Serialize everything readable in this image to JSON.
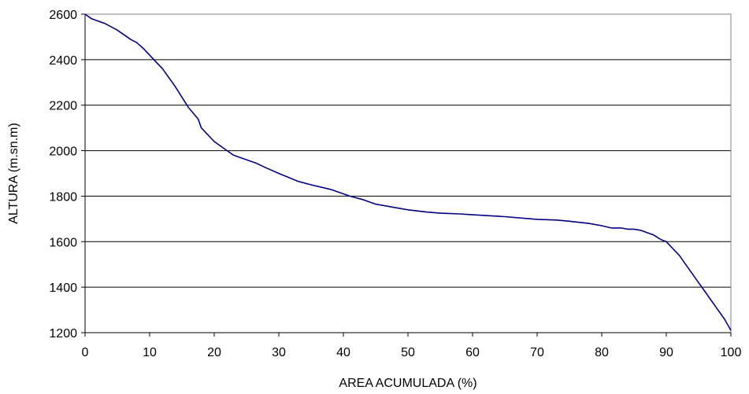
{
  "chart_data": {
    "type": "line",
    "title": "",
    "xlabel": "AREA ACUMULADA (%)",
    "ylabel": "ALTURA  (m.sn.m)",
    "xlim": [
      0,
      100
    ],
    "ylim": [
      1200,
      2600
    ],
    "x_ticks": [
      0,
      10,
      20,
      30,
      40,
      50,
      60,
      70,
      80,
      90,
      100
    ],
    "y_ticks": [
      1200,
      1400,
      1600,
      1800,
      2000,
      2200,
      2400,
      2600
    ],
    "grid": "horizontal",
    "legend": "none",
    "line_color": "#000080",
    "series": [
      {
        "x": [
          0,
          1,
          2,
          3,
          5,
          7,
          8,
          9,
          10,
          11,
          12,
          14,
          16,
          17.5,
          18,
          20,
          22,
          23,
          25,
          26.5,
          28,
          30,
          33,
          35,
          38,
          41,
          43,
          45,
          48,
          50,
          53,
          55,
          58,
          60,
          65,
          70,
          73,
          75,
          78,
          80,
          81.5,
          83,
          84,
          85,
          86,
          87,
          88,
          89,
          89.5,
          90,
          91,
          92,
          93,
          94,
          95,
          96,
          97,
          98,
          99,
          100
        ],
        "y": [
          2600,
          2580,
          2570,
          2560,
          2530,
          2490,
          2475,
          2450,
          2420,
          2390,
          2360,
          2280,
          2190,
          2140,
          2100,
          2040,
          2000,
          1980,
          1960,
          1945,
          1925,
          1900,
          1865,
          1850,
          1830,
          1800,
          1785,
          1765,
          1750,
          1740,
          1730,
          1725,
          1722,
          1718,
          1710,
          1698,
          1695,
          1690,
          1680,
          1670,
          1660,
          1660,
          1655,
          1655,
          1650,
          1640,
          1630,
          1612,
          1605,
          1600,
          1570,
          1540,
          1500,
          1460,
          1420,
          1380,
          1340,
          1300,
          1260,
          1210
        ]
      }
    ]
  }
}
